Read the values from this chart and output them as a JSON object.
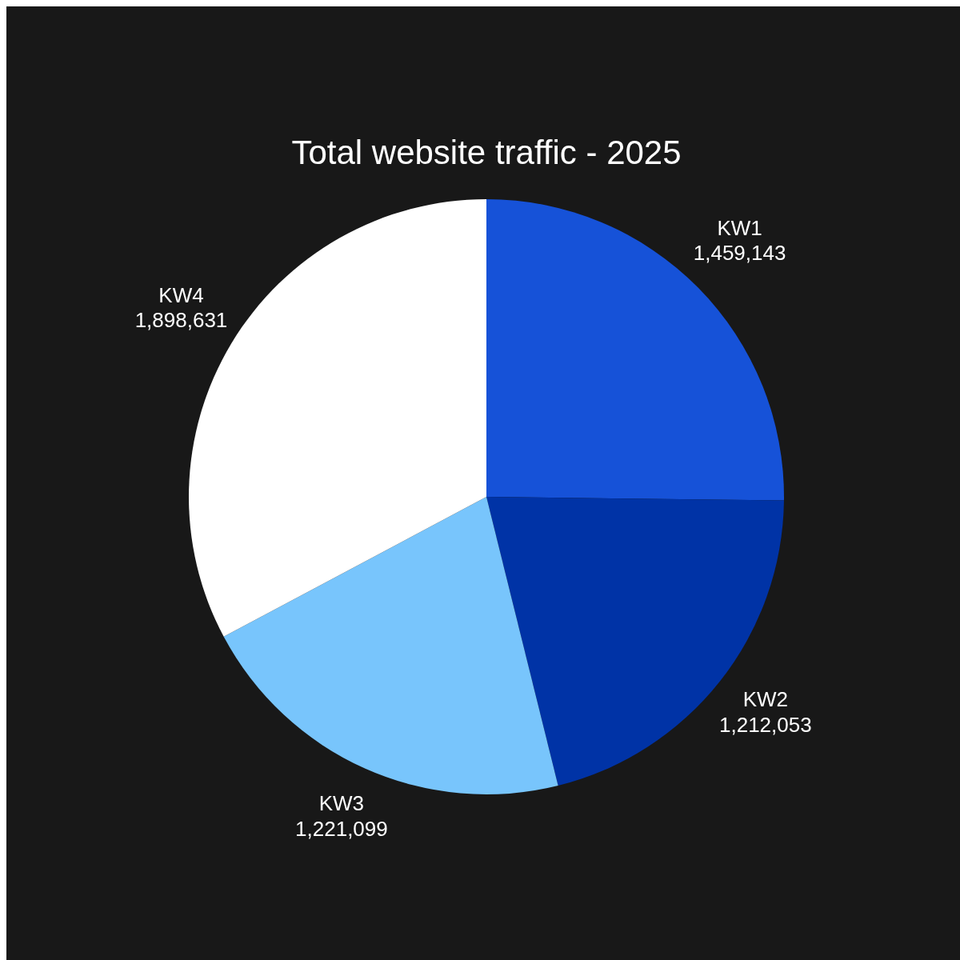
{
  "chart_data": {
    "type": "pie",
    "title": "Total website traffic - 2025",
    "categories": [
      "KW1",
      "KW2",
      "KW3",
      "KW4"
    ],
    "values": [
      1459143,
      1212053,
      1221099,
      1898631
    ],
    "colors": [
      "#1652d8",
      "#0033a6",
      "#78c5fc",
      "#ffffff"
    ],
    "value_labels": [
      "1,459,143",
      "1,212,053",
      "1,221,099",
      "1,898,631"
    ]
  }
}
